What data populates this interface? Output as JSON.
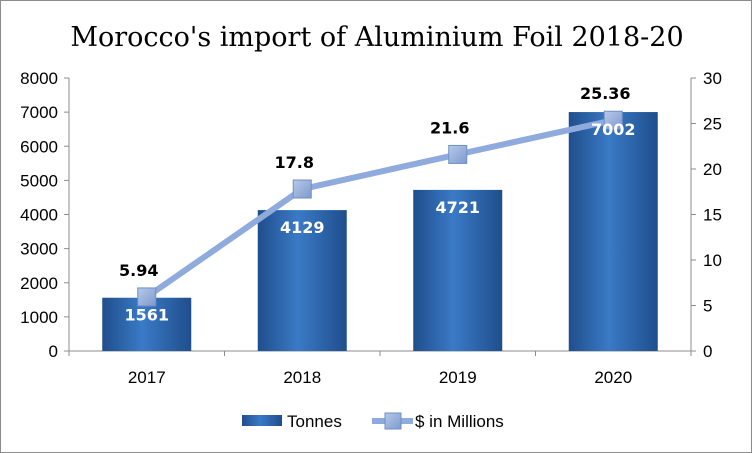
{
  "chart_data": {
    "type": "bar",
    "title": "Morocco's import of Aluminium Foil 2018-20",
    "categories": [
      "2017",
      "2018",
      "2019",
      "2020"
    ],
    "series": [
      {
        "name": "Tonnes",
        "type": "bar",
        "axis": "left",
        "values": [
          1561,
          4129,
          4721,
          7002
        ],
        "data_labels": [
          "1561",
          "4129",
          "4721",
          "7002"
        ],
        "color": "#2e6fb7"
      },
      {
        "name": "$ in Millions",
        "type": "line",
        "axis": "right",
        "values": [
          5.94,
          17.8,
          21.6,
          25.36
        ],
        "data_labels": [
          "5.94",
          "17.8",
          "21.6",
          "25.36"
        ],
        "color": "#8faadc"
      }
    ],
    "ylim_left": [
      0,
      8000
    ],
    "yticks_left": [
      "0",
      "1000",
      "2000",
      "3000",
      "4000",
      "5000",
      "6000",
      "7000",
      "8000"
    ],
    "ylim_right": [
      0,
      30
    ],
    "yticks_right": [
      "0",
      "5",
      "10",
      "15",
      "20",
      "25",
      "30"
    ],
    "grid": false,
    "legend_position": "bottom"
  }
}
